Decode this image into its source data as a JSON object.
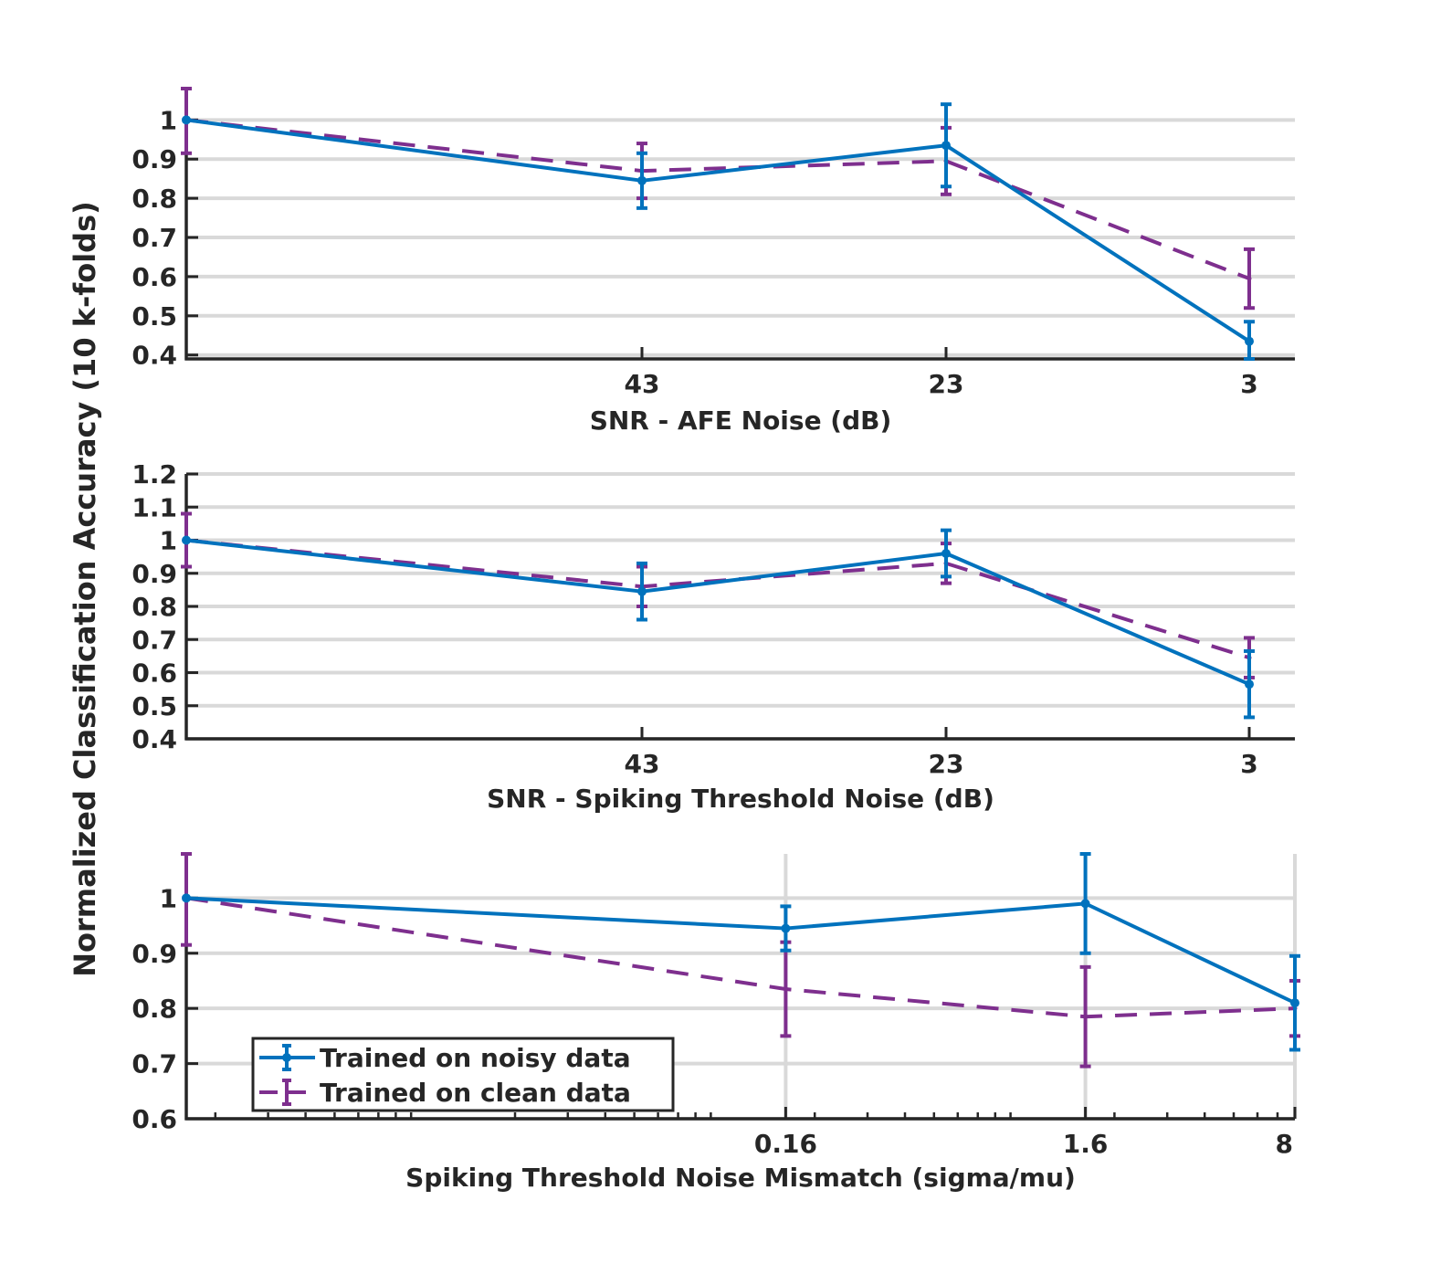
{
  "figure": {
    "ylabel": "Normalized Classification Accuracy (10 k-folds)"
  },
  "legend": {
    "entries": [
      "Trained on noisy data",
      "Trained on clean data"
    ],
    "placement": "bottom-left of third panel"
  },
  "colors": {
    "noisy": "#0072BD",
    "clean": "#7E2F8E",
    "grid": "#d9d9d9",
    "axis": "#262626"
  },
  "chart_data": [
    {
      "type": "line",
      "xlabel": "SNR - AFE Noise (dB)",
      "ylabel": "",
      "x_categories": [
        "",
        "43",
        "23",
        "3"
      ],
      "x_ticks_shown": [
        "43",
        "23",
        "3"
      ],
      "ylim": [
        0.39,
        1.08
      ],
      "yticks": [
        0.4,
        0.5,
        0.6,
        0.7,
        0.8,
        0.9,
        1
      ],
      "ytick_labels": [
        "0.4",
        "0.5",
        "0.6",
        "0.7",
        "0.8",
        "0.9",
        "1"
      ],
      "grid": "horizontal",
      "series": [
        {
          "name": "Trained on noisy data",
          "style": "solid",
          "values": [
            1.0,
            0.845,
            0.935,
            0.435
          ],
          "err": [
            0.0,
            0.07,
            0.105,
            0.05
          ]
        },
        {
          "name": "Trained on clean data",
          "style": "dashed",
          "values": [
            1.0,
            0.87,
            0.895,
            0.595
          ],
          "err": [
            0.085,
            0.07,
            0.085,
            0.075
          ]
        }
      ]
    },
    {
      "type": "line",
      "xlabel": "SNR - Spiking Threshold Noise (dB)",
      "ylabel": "",
      "x_categories": [
        "",
        "43",
        "23",
        "3"
      ],
      "x_ticks_shown": [
        "43",
        "23",
        "3"
      ],
      "ylim": [
        0.4,
        1.2
      ],
      "yticks": [
        0.4,
        0.5,
        0.6,
        0.7,
        0.8,
        0.9,
        1,
        1.1,
        1.2
      ],
      "ytick_labels": [
        "0.4",
        "0.5",
        "0.6",
        "0.7",
        "0.8",
        "0.9",
        "1",
        "1.1",
        "1.2"
      ],
      "grid": "horizontal",
      "series": [
        {
          "name": "Trained on noisy data",
          "style": "solid",
          "values": [
            1.0,
            0.845,
            0.96,
            0.565
          ],
          "err": [
            0.0,
            0.085,
            0.07,
            0.1
          ]
        },
        {
          "name": "Trained on clean data",
          "style": "dashed",
          "values": [
            1.0,
            0.86,
            0.93,
            0.645
          ],
          "err": [
            0.08,
            0.06,
            0.06,
            0.06
          ]
        }
      ]
    },
    {
      "type": "line",
      "xlabel": "Spiking Threshold Noise Mismatch (sigma/mu)",
      "ylabel": "",
      "xscale": "log",
      "xlim": [
        0.0016,
        8
      ],
      "x_values": [
        0.0016,
        0.16,
        1.6,
        8
      ],
      "x_ticks_shown": [
        "0.16",
        "1.6",
        "8"
      ],
      "ylim": [
        0.6,
        1.08
      ],
      "yticks": [
        0.6,
        0.7,
        0.8,
        0.9,
        1
      ],
      "ytick_labels": [
        "0.6",
        "0.7",
        "0.8",
        "0.9",
        "1"
      ],
      "grid": "both",
      "series": [
        {
          "name": "Trained on noisy data",
          "style": "solid",
          "values": [
            1.0,
            0.945,
            0.99,
            0.81
          ],
          "err": [
            0.0,
            0.04,
            0.09,
            0.085
          ]
        },
        {
          "name": "Trained on clean data",
          "style": "dashed",
          "values": [
            1.0,
            0.835,
            0.785,
            0.8
          ],
          "err": [
            0.085,
            0.085,
            0.09,
            0.05
          ]
        }
      ]
    }
  ]
}
